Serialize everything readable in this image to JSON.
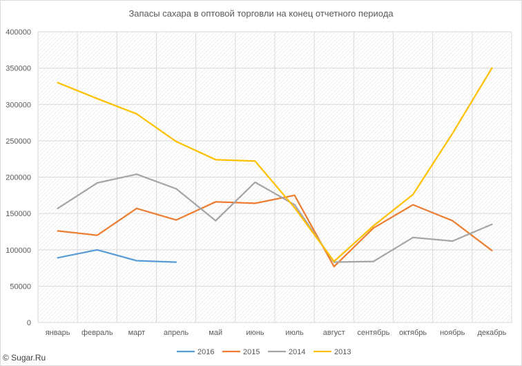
{
  "chart_data": {
    "type": "line",
    "title": "Запасы сахара в оптовой торговли на конец отчетного периода",
    "xlabel": "",
    "ylabel": "",
    "categories": [
      "январь",
      "февраль",
      "март",
      "апрель",
      "май",
      "июнь",
      "июль",
      "август",
      "сентябрь",
      "октябрь",
      "ноябрь",
      "декабрь"
    ],
    "yticks": [
      "0",
      "50000",
      "100000",
      "150000",
      "200000",
      "250000",
      "300000",
      "350000",
      "400000"
    ],
    "ylim": [
      0,
      400000
    ],
    "grid": true,
    "legend_position": "bottom",
    "series": [
      {
        "name": "2016",
        "color": "#5b9bd5",
        "values": [
          89000,
          100000,
          85000,
          83000,
          null,
          null,
          null,
          null,
          null,
          null,
          null,
          null
        ]
      },
      {
        "name": "2015",
        "color": "#ed7d31",
        "values": [
          126000,
          120000,
          157000,
          141000,
          166000,
          164000,
          175000,
          77000,
          130000,
          162000,
          140000,
          99000
        ]
      },
      {
        "name": "2014",
        "color": "#a5a5a5",
        "values": [
          157000,
          192000,
          204000,
          184000,
          140000,
          193000,
          162000,
          83000,
          84000,
          117000,
          112000,
          135000
        ]
      },
      {
        "name": "2013",
        "color": "#ffc000",
        "values": [
          330000,
          308000,
          287000,
          249000,
          224000,
          222000,
          158000,
          84000,
          133000,
          176000,
          260000,
          350000
        ]
      }
    ]
  },
  "footer": {
    "copyright": "© Sugar.Ru"
  }
}
